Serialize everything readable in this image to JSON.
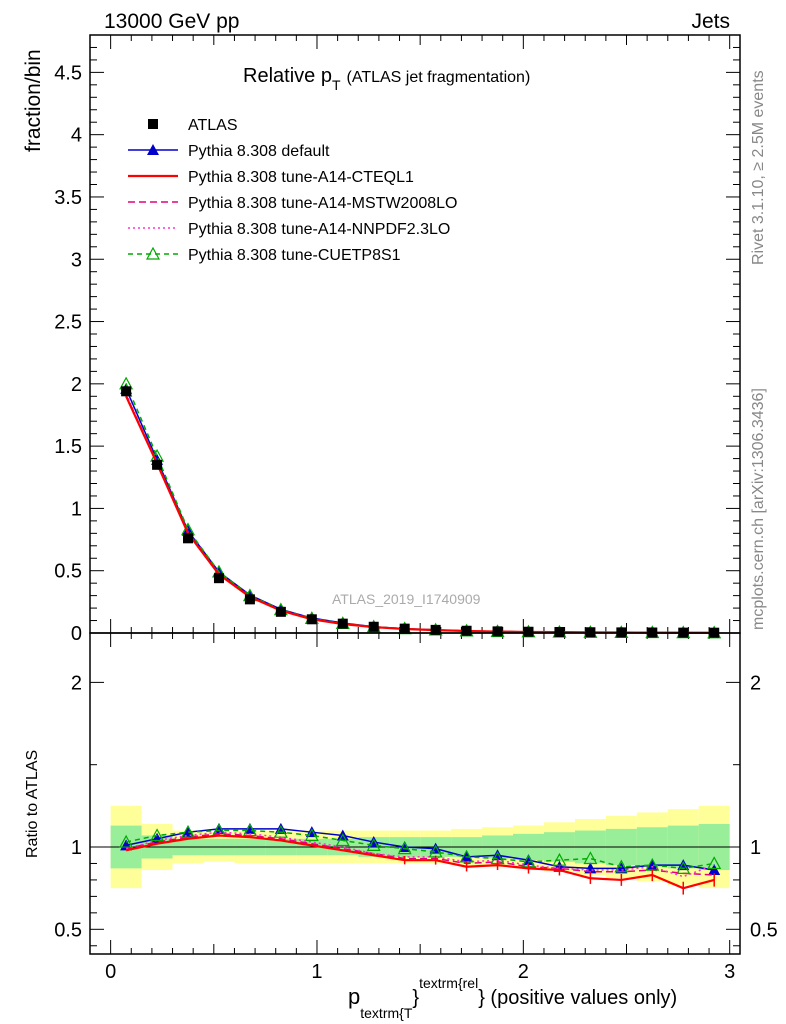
{
  "header": {
    "left": "13000 GeV pp",
    "right": "Jets"
  },
  "title": {
    "main": "Relative p",
    "main_sub": "T",
    "note": "(ATLAS jet fragmentation)"
  },
  "side_labels": {
    "rivet": "Rivet 3.1.10, ≥ 2.5M events",
    "mcplots": "mcplots.cern.ch [arXiv:1306.3436]"
  },
  "watermark": "ATLAS_2019_I1740909",
  "axes": {
    "ylabel_top": "fraction/bin",
    "ylabel_bottom": "Ratio to ATLAS",
    "xlabel_p": "p",
    "xlabel_sub": "textrm{T",
    "xlabel_sup": "}",
    "xlabel_sup2": "textrm{rel",
    "xlabel_tail": "} (positive values only)"
  },
  "chart_data": {
    "type": "line",
    "x": [
      0.075,
      0.225,
      0.375,
      0.525,
      0.675,
      0.825,
      0.975,
      1.125,
      1.275,
      1.425,
      1.575,
      1.725,
      1.875,
      2.025,
      2.175,
      2.325,
      2.475,
      2.625,
      2.775,
      2.925
    ],
    "xlim": [
      -0.1,
      3.05
    ],
    "xticks": [
      "0",
      "1",
      "2",
      "3"
    ],
    "main_ylim": [
      0,
      4.8
    ],
    "main_yticks": [
      "0",
      "0.5",
      "1",
      "1.5",
      "2",
      "2.5",
      "3",
      "3.5",
      "4",
      "4.5"
    ],
    "ratio_ylim": [
      0.35,
      2.3
    ],
    "ratio_yticks": [
      "0.5",
      "1",
      "2"
    ],
    "band_edges": [
      0.0,
      0.15,
      0.3,
      0.45,
      0.6,
      0.75,
      0.9,
      1.05,
      1.2,
      1.35,
      1.5,
      1.65,
      1.8,
      1.95,
      2.1,
      2.25,
      2.4,
      2.55,
      2.7,
      2.85,
      3.0
    ],
    "band_outer": [
      0.25,
      0.14,
      0.1,
      0.09,
      0.1,
      0.1,
      0.1,
      0.1,
      0.1,
      0.1,
      0.1,
      0.11,
      0.12,
      0.13,
      0.15,
      0.17,
      0.19,
      0.21,
      0.23,
      0.25
    ],
    "band_inner": [
      0.13,
      0.07,
      0.05,
      0.05,
      0.05,
      0.05,
      0.05,
      0.05,
      0.06,
      0.06,
      0.06,
      0.06,
      0.07,
      0.08,
      0.09,
      0.1,
      0.11,
      0.12,
      0.13,
      0.14
    ],
    "series": [
      {
        "name": "ATLAS",
        "color": "#000000",
        "dash": "",
        "marker": "square",
        "values": [
          1.94,
          1.35,
          0.76,
          0.44,
          0.27,
          0.17,
          0.11,
          0.075,
          0.05,
          0.035,
          0.025,
          0.018,
          0.013,
          0.01,
          0.008,
          0.006,
          0.005,
          0.004,
          0.003,
          0.0025
        ],
        "ratio": [
          1.0,
          1.0,
          1.0,
          1.0,
          1.0,
          1.0,
          1.0,
          1.0,
          1.0,
          1.0,
          1.0,
          1.0,
          1.0,
          1.0,
          1.0,
          1.0,
          1.0,
          1.0,
          1.0,
          1.0
        ]
      },
      {
        "name": "Pythia 8.308 default",
        "color": "#0000cc",
        "dash": "",
        "marker": "triangle",
        "values": [
          1.96,
          1.39,
          0.82,
          0.49,
          0.305,
          0.19,
          0.12,
          0.08,
          0.05,
          0.035,
          0.025,
          0.017,
          0.012,
          0.009,
          0.007,
          0.005,
          0.004,
          0.0035,
          0.0027,
          0.0021
        ],
        "ratio": [
          1.01,
          1.05,
          1.09,
          1.11,
          1.11,
          1.11,
          1.09,
          1.07,
          1.03,
          1.0,
          0.99,
          0.94,
          0.95,
          0.92,
          0.88,
          0.87,
          0.87,
          0.89,
          0.89,
          0.86
        ]
      },
      {
        "name": "Pythia 8.308 tune-A14-CTEQL1",
        "color": "#ff0000",
        "dash": "",
        "marker": "none",
        "values": [
          1.9,
          1.36,
          0.8,
          0.47,
          0.29,
          0.18,
          0.11,
          0.072,
          0.047,
          0.032,
          0.023,
          0.016,
          0.0115,
          0.0087,
          0.0068,
          0.0049,
          0.004,
          0.0033,
          0.0023,
          0.002
        ],
        "ratio": [
          0.98,
          1.02,
          1.05,
          1.07,
          1.06,
          1.04,
          1.01,
          0.98,
          0.95,
          0.92,
          0.92,
          0.88,
          0.89,
          0.87,
          0.86,
          0.81,
          0.8,
          0.83,
          0.75,
          0.8
        ]
      },
      {
        "name": "Pythia 8.308 tune-A14-MSTW2008LO",
        "color": "#e6007e",
        "dash": "7,4",
        "marker": "none",
        "values": [
          1.91,
          1.37,
          0.8,
          0.47,
          0.29,
          0.18,
          0.112,
          0.073,
          0.048,
          0.033,
          0.023,
          0.016,
          0.0117,
          0.0089,
          0.007,
          0.0051,
          0.0042,
          0.0034,
          0.0025,
          0.0021
        ],
        "ratio": [
          0.99,
          1.03,
          1.06,
          1.08,
          1.07,
          1.05,
          1.02,
          0.99,
          0.96,
          0.93,
          0.93,
          0.9,
          0.91,
          0.88,
          0.87,
          0.85,
          0.85,
          0.86,
          0.84,
          0.83
        ]
      },
      {
        "name": "Pythia 8.308 tune-A14-NNPDF2.3LO",
        "color": "#ff33cc",
        "dash": "2,3",
        "marker": "none",
        "values": [
          1.92,
          1.37,
          0.81,
          0.475,
          0.292,
          0.181,
          0.113,
          0.074,
          0.048,
          0.033,
          0.024,
          0.0165,
          0.012,
          0.009,
          0.007,
          0.0052,
          0.0043,
          0.0034,
          0.0025,
          0.0022
        ],
        "ratio": [
          0.99,
          1.04,
          1.07,
          1.09,
          1.08,
          1.06,
          1.03,
          1.0,
          0.96,
          0.94,
          0.94,
          0.91,
          0.92,
          0.89,
          0.87,
          0.86,
          0.86,
          0.88,
          0.82,
          0.89
        ]
      },
      {
        "name": "Pythia 8.308 tune-CUETP8S1",
        "color": "#00aa00",
        "dash": "5,4",
        "marker": "open-triangle",
        "values": [
          2.0,
          1.42,
          0.83,
          0.49,
          0.3,
          0.187,
          0.117,
          0.077,
          0.05,
          0.035,
          0.025,
          0.017,
          0.0123,
          0.0094,
          0.0075,
          0.0056,
          0.0044,
          0.0036,
          0.0027,
          0.0023
        ],
        "ratio": [
          1.03,
          1.07,
          1.09,
          1.1,
          1.1,
          1.09,
          1.07,
          1.04,
          1.01,
          0.99,
          0.97,
          0.94,
          0.93,
          0.91,
          0.92,
          0.93,
          0.88,
          0.89,
          0.87,
          0.9
        ]
      }
    ]
  }
}
